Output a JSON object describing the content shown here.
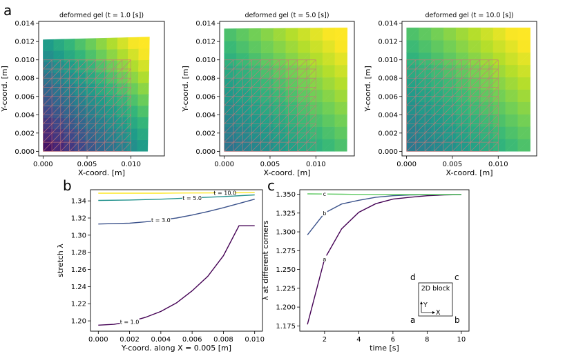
{
  "panels": {
    "a": "a",
    "b": "b",
    "c": "c"
  },
  "colors": {
    "low": "#440154",
    "high": "#fde725",
    "grid": "#c87a7a"
  },
  "chart_data": [
    {
      "type": "heatmap",
      "title": "deformed gel (t = 1.0 [s])",
      "xlabel": "X-coord. [m]",
      "ylabel": "Y-coord. [m]",
      "xticks": [
        "0.000",
        "0.005",
        "0.010"
      ],
      "yticks": [
        "0.000",
        "0.002",
        "0.004",
        "0.006",
        "0.008",
        "0.010",
        "0.012",
        "0.014"
      ],
      "xlim": [
        -0.0005,
        0.0138
      ],
      "ylim": [
        -0.0005,
        0.0142
      ],
      "stretch_bottom": 1.195,
      "stretch_top": 1.311,
      "top_right_y": 0.0125,
      "top_left_y": 0.0122,
      "right_bottom_x": 0.0119
    },
    {
      "type": "heatmap",
      "title": "deformed gel (t = 5.0 [s])",
      "xlabel": "X-coord. [m]",
      "ylabel": "Y-coord. [m]",
      "xticks": [
        "0.000",
        "0.005",
        "0.010"
      ],
      "yticks": [
        "0.000",
        "0.002",
        "0.004",
        "0.006",
        "0.008",
        "0.010",
        "0.012",
        "0.014"
      ],
      "xlim": [
        -0.0005,
        0.0142
      ],
      "ylim": [
        -0.0005,
        0.0142
      ],
      "stretch_bottom": 1.34,
      "stretch_top": 1.347,
      "top_right_y": 0.0135,
      "top_left_y": 0.0134,
      "right_bottom_x": 0.0134
    },
    {
      "type": "heatmap",
      "title": "deformed gel (t = 10.0 [s])",
      "xlabel": "X-coord. [m]",
      "ylabel": "Y-coord. [m]",
      "xticks": [
        "0.000",
        "0.005",
        "0.010"
      ],
      "yticks": [
        "0.000",
        "0.002",
        "0.004",
        "0.006",
        "0.008",
        "0.010",
        "0.012",
        "0.014"
      ],
      "xlim": [
        -0.0005,
        0.0142
      ],
      "ylim": [
        -0.0005,
        0.0142
      ],
      "stretch_bottom": 1.349,
      "stretch_top": 1.3495,
      "top_right_y": 0.0135,
      "top_left_y": 0.0135,
      "right_bottom_x": 0.0135
    },
    {
      "type": "line",
      "xlabel": "Y-coord. along X = 0.005 [m]",
      "ylabel": "stretch λ",
      "xlim": [
        -0.0005,
        0.0105
      ],
      "ylim": [
        1.188,
        1.353
      ],
      "xticks": [
        "0.000",
        "0.002",
        "0.004",
        "0.006",
        "0.008",
        "0.010"
      ],
      "xtick_values": [
        0,
        0.002,
        0.004,
        0.006,
        0.008,
        0.01
      ],
      "yticks": [
        "1.20",
        "1.22",
        "1.24",
        "1.26",
        "1.28",
        "1.30",
        "1.32",
        "1.34"
      ],
      "ytick_values": [
        1.2,
        1.22,
        1.24,
        1.26,
        1.28,
        1.3,
        1.32,
        1.34
      ],
      "series": [
        {
          "name": "t = 1.0",
          "color": "#440154",
          "x": [
            0,
            0.001,
            0.002,
            0.003,
            0.004,
            0.005,
            0.006,
            0.007,
            0.008,
            0.009,
            0.01
          ],
          "y": [
            1.195,
            1.196,
            1.199,
            1.204,
            1.211,
            1.221,
            1.235,
            1.252,
            1.276,
            1.311,
            1.311
          ],
          "label_x": 0.002
        },
        {
          "name": "t = 3.0",
          "color": "#3b528b",
          "x": [
            0,
            0.001,
            0.002,
            0.003,
            0.004,
            0.005,
            0.006,
            0.007,
            0.008,
            0.009,
            0.01
          ],
          "y": [
            1.313,
            1.3135,
            1.314,
            1.3155,
            1.3175,
            1.32,
            1.3235,
            1.3275,
            1.332,
            1.337,
            1.342
          ],
          "label_x": 0.004
        },
        {
          "name": "t = 5.0",
          "color": "#21918c",
          "x": [
            0,
            0.002,
            0.004,
            0.006,
            0.008,
            0.01
          ],
          "y": [
            1.3405,
            1.341,
            1.342,
            1.3435,
            1.345,
            1.347
          ],
          "label_x": 0.006
        },
        {
          "name": "t = 10.0",
          "color": "#fde725",
          "x": [
            0,
            0.002,
            0.004,
            0.006,
            0.008,
            0.01
          ],
          "y": [
            1.349,
            1.349,
            1.349,
            1.3492,
            1.3493,
            1.3495
          ],
          "label_x": 0.0081
        }
      ],
      "curve_labels": [
        "t = 1.0",
        "t = 3.0",
        "t = 5.0",
        "t = 10.0"
      ]
    },
    {
      "type": "line",
      "xlabel": "time [s]",
      "ylabel": "λ at different corners",
      "xlim": [
        0.55,
        10.45
      ],
      "ylim": [
        1.168,
        1.356
      ],
      "xticks": [
        "2",
        "4",
        "6",
        "8",
        "10"
      ],
      "xtick_values": [
        2,
        4,
        6,
        8,
        10
      ],
      "yticks": [
        "1.175",
        "1.200",
        "1.225",
        "1.250",
        "1.275",
        "1.300",
        "1.325",
        "1.350"
      ],
      "ytick_values": [
        1.175,
        1.2,
        1.225,
        1.25,
        1.275,
        1.3,
        1.325,
        1.35
      ],
      "series": [
        {
          "name": "a",
          "color": "#440154",
          "x": [
            1,
            2,
            3,
            4,
            5,
            6,
            7,
            8,
            9,
            10
          ],
          "y": [
            1.177,
            1.264,
            1.304,
            1.326,
            1.3375,
            1.3435,
            1.346,
            1.348,
            1.349,
            1.3495
          ],
          "label_x": 2.0
        },
        {
          "name": "b",
          "color": "#3b528b",
          "x": [
            1,
            2,
            3,
            4,
            5,
            6,
            7,
            8,
            9,
            10
          ],
          "y": [
            1.296,
            1.325,
            1.337,
            1.342,
            1.346,
            1.348,
            1.349,
            1.3493,
            1.3495,
            1.3496
          ],
          "label_x": 2.0
        },
        {
          "name": "c",
          "color": "#5ec962",
          "x": [
            1,
            2,
            3,
            4,
            5,
            6,
            7,
            8,
            9,
            10
          ],
          "y": [
            1.3505,
            1.3503,
            1.35,
            1.3498,
            1.3497,
            1.3496,
            1.3496,
            1.3496,
            1.3496,
            1.3496
          ],
          "label_x": 2.0
        }
      ],
      "inset": {
        "title": "2D block",
        "corners": {
          "a": "a",
          "b": "b",
          "c": "c",
          "d": "d"
        },
        "x_axis": "X",
        "y_axis": "Y"
      }
    }
  ]
}
